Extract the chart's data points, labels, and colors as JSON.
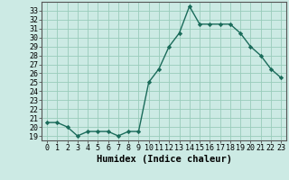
{
  "x": [
    0,
    1,
    2,
    3,
    4,
    5,
    6,
    7,
    8,
    9,
    10,
    11,
    12,
    13,
    14,
    15,
    16,
    17,
    18,
    19,
    20,
    21,
    22,
    23
  ],
  "y": [
    20.5,
    20.5,
    20.0,
    19.0,
    19.5,
    19.5,
    19.5,
    19.0,
    19.5,
    19.5,
    25.0,
    26.5,
    29.0,
    30.5,
    33.5,
    31.5,
    31.5,
    31.5,
    31.5,
    30.5,
    29.0,
    28.0,
    26.5,
    25.5
  ],
  "line_color": "#1a6b5a",
  "marker": "D",
  "marker_size": 2.2,
  "bg_color": "#cceae4",
  "grid_color": "#99ccbb",
  "xlabel": "Humidex (Indice chaleur)",
  "xlabel_fontsize": 7.5,
  "ylabel_ticks": [
    19,
    20,
    21,
    22,
    23,
    24,
    25,
    26,
    27,
    28,
    29,
    30,
    31,
    32,
    33
  ],
  "ylim": [
    18.5,
    34.0
  ],
  "xlim": [
    -0.5,
    23.5
  ],
  "xticks": [
    0,
    1,
    2,
    3,
    4,
    5,
    6,
    7,
    8,
    9,
    10,
    11,
    12,
    13,
    14,
    15,
    16,
    17,
    18,
    19,
    20,
    21,
    22,
    23
  ],
  "tick_fontsize": 6.0,
  "line_width": 1.0
}
